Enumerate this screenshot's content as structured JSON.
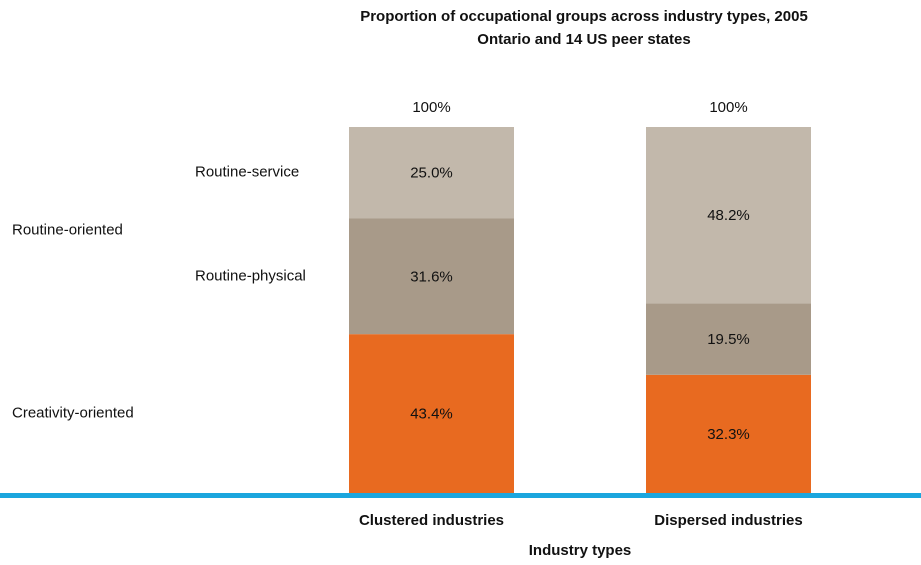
{
  "chart_data": {
    "type": "stacked_bar",
    "title": "Proportion of occupational groups across industry types, 2005",
    "subtitle": "Ontario and 14 US peer states",
    "categories": [
      "Clustered industries",
      "Dispersed industries"
    ],
    "x_label": "Industry types",
    "series": [
      {
        "name": "Creativity-oriented",
        "color": "#e86a20",
        "values": [
          43.4,
          32.3
        ],
        "value_labels": [
          "43.4%",
          "32.3%"
        ]
      },
      {
        "name": "Routine-physical",
        "color": "#a89a89",
        "values": [
          31.6,
          19.5
        ],
        "value_labels": [
          "31.6%",
          "19.5%"
        ]
      },
      {
        "name": "Routine-service",
        "color": "#c2b8ab",
        "values": [
          25.0,
          48.2
        ],
        "value_labels": [
          "25.0%",
          "48.2%"
        ]
      }
    ],
    "group_label": "Routine-oriented",
    "totals": [
      100,
      100
    ],
    "total_labels": [
      "100%",
      "100%"
    ],
    "ylim": [
      0,
      100
    ],
    "axis_color": "#1ba6de"
  }
}
